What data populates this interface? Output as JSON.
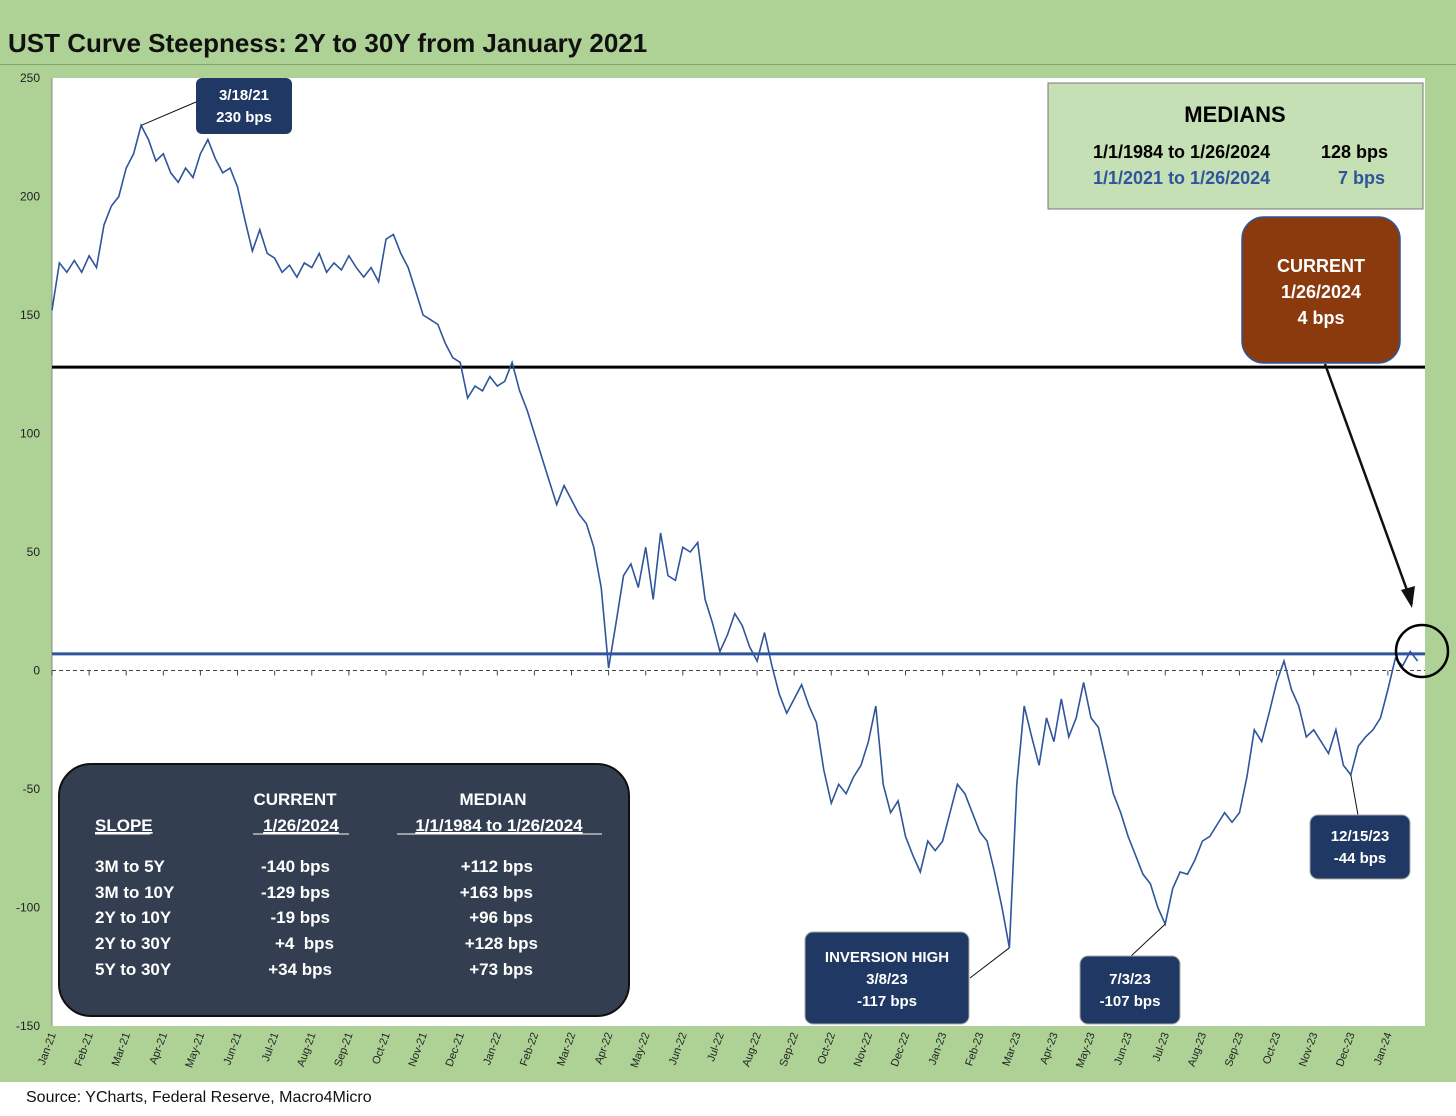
{
  "chart_data": {
    "type": "line",
    "title": "UST Curve Steepness: 2Y to 30Y from January 2021",
    "ylim": [
      -150,
      250
    ],
    "yticks": [
      250,
      200,
      150,
      100,
      50,
      0,
      -50,
      -100,
      -150
    ],
    "xlim": [
      0,
      37
    ],
    "xticks": [
      "Jan-21",
      "Feb-21",
      "Mar-21",
      "Apr-21",
      "May-21",
      "Jun-21",
      "Jul-21",
      "Aug-21",
      "Sep-21",
      "Oct-21",
      "Nov-21",
      "Dec-21",
      "Jan-22",
      "Feb-22",
      "Mar-22",
      "Apr-22",
      "May-22",
      "Jun-22",
      "Jul-22",
      "Aug-22",
      "Sep-22",
      "Oct-22",
      "Nov-22",
      "Dec-22",
      "Jan-23",
      "Feb-23",
      "Mar-23",
      "Apr-23",
      "May-23",
      "Jun-23",
      "Jul-23",
      "Aug-23",
      "Sep-23",
      "Oct-23",
      "Nov-23",
      "Dec-23",
      "Jan-24"
    ],
    "series": [
      {
        "name": "",
        "color": "#2f559c",
        "points": [
          [
            0,
            152
          ],
          [
            0.2,
            172
          ],
          [
            0.4,
            168
          ],
          [
            0.6,
            173
          ],
          [
            0.8,
            168
          ],
          [
            1.0,
            175
          ],
          [
            1.2,
            170
          ],
          [
            1.4,
            188
          ],
          [
            1.6,
            196
          ],
          [
            1.8,
            200
          ],
          [
            2.0,
            212
          ],
          [
            2.2,
            218
          ],
          [
            2.4,
            230
          ],
          [
            2.6,
            224
          ],
          [
            2.8,
            215
          ],
          [
            3.0,
            218
          ],
          [
            3.2,
            210
          ],
          [
            3.4,
            206
          ],
          [
            3.6,
            212
          ],
          [
            3.8,
            208
          ],
          [
            4.0,
            218
          ],
          [
            4.2,
            224
          ],
          [
            4.4,
            216
          ],
          [
            4.6,
            210
          ],
          [
            4.8,
            212
          ],
          [
            5.0,
            204
          ],
          [
            5.2,
            190
          ],
          [
            5.4,
            177
          ],
          [
            5.6,
            186
          ],
          [
            5.8,
            176
          ],
          [
            6.0,
            174
          ],
          [
            6.2,
            168
          ],
          [
            6.4,
            171
          ],
          [
            6.6,
            166
          ],
          [
            6.8,
            172
          ],
          [
            7.0,
            170
          ],
          [
            7.2,
            176
          ],
          [
            7.4,
            168
          ],
          [
            7.6,
            172
          ],
          [
            7.8,
            169
          ],
          [
            8.0,
            175
          ],
          [
            8.2,
            170
          ],
          [
            8.4,
            166
          ],
          [
            8.6,
            170
          ],
          [
            8.8,
            164
          ],
          [
            9.0,
            182
          ],
          [
            9.2,
            184
          ],
          [
            9.4,
            176
          ],
          [
            9.6,
            170
          ],
          [
            9.8,
            160
          ],
          [
            10.0,
            150
          ],
          [
            10.2,
            148
          ],
          [
            10.4,
            146
          ],
          [
            10.6,
            138
          ],
          [
            10.8,
            132
          ],
          [
            11.0,
            130
          ],
          [
            11.2,
            115
          ],
          [
            11.4,
            120
          ],
          [
            11.6,
            118
          ],
          [
            11.8,
            124
          ],
          [
            12.0,
            120
          ],
          [
            12.2,
            122
          ],
          [
            12.4,
            130
          ],
          [
            12.6,
            118
          ],
          [
            12.8,
            110
          ],
          [
            13.0,
            100
          ],
          [
            13.2,
            90
          ],
          [
            13.4,
            80
          ],
          [
            13.6,
            70
          ],
          [
            13.8,
            78
          ],
          [
            14.0,
            72
          ],
          [
            14.2,
            66
          ],
          [
            14.4,
            62
          ],
          [
            14.6,
            52
          ],
          [
            14.8,
            35
          ],
          [
            15.0,
            1
          ],
          [
            15.2,
            20
          ],
          [
            15.4,
            40
          ],
          [
            15.6,
            45
          ],
          [
            15.8,
            35
          ],
          [
            16.0,
            52
          ],
          [
            16.2,
            30
          ],
          [
            16.4,
            58
          ],
          [
            16.6,
            40
          ],
          [
            16.8,
            38
          ],
          [
            17.0,
            52
          ],
          [
            17.2,
            50
          ],
          [
            17.4,
            54
          ],
          [
            17.6,
            30
          ],
          [
            17.8,
            20
          ],
          [
            18.0,
            8
          ],
          [
            18.2,
            15
          ],
          [
            18.4,
            24
          ],
          [
            18.6,
            19
          ],
          [
            18.8,
            10
          ],
          [
            19.0,
            4
          ],
          [
            19.2,
            16
          ],
          [
            19.4,
            2
          ],
          [
            19.6,
            -10
          ],
          [
            19.8,
            -18
          ],
          [
            20.0,
            -12
          ],
          [
            20.2,
            -6
          ],
          [
            20.4,
            -15
          ],
          [
            20.6,
            -22
          ],
          [
            20.8,
            -42
          ],
          [
            21.0,
            -56
          ],
          [
            21.2,
            -48
          ],
          [
            21.4,
            -52
          ],
          [
            21.6,
            -45
          ],
          [
            21.8,
            -40
          ],
          [
            22.0,
            -30
          ],
          [
            22.2,
            -15
          ],
          [
            22.4,
            -48
          ],
          [
            22.6,
            -60
          ],
          [
            22.8,
            -55
          ],
          [
            23.0,
            -70
          ],
          [
            23.2,
            -78
          ],
          [
            23.4,
            -85
          ],
          [
            23.6,
            -72
          ],
          [
            23.8,
            -76
          ],
          [
            24.0,
            -72
          ],
          [
            24.2,
            -60
          ],
          [
            24.4,
            -48
          ],
          [
            24.6,
            -52
          ],
          [
            24.8,
            -60
          ],
          [
            25.0,
            -68
          ],
          [
            25.2,
            -72
          ],
          [
            25.4,
            -85
          ],
          [
            25.6,
            -100
          ],
          [
            25.8,
            -117
          ],
          [
            26.0,
            -48
          ],
          [
            26.2,
            -15
          ],
          [
            26.4,
            -28
          ],
          [
            26.6,
            -40
          ],
          [
            26.8,
            -20
          ],
          [
            27.0,
            -30
          ],
          [
            27.2,
            -12
          ],
          [
            27.4,
            -28
          ],
          [
            27.6,
            -20
          ],
          [
            27.8,
            -5
          ],
          [
            28.0,
            -20
          ],
          [
            28.2,
            -24
          ],
          [
            28.4,
            -38
          ],
          [
            28.6,
            -52
          ],
          [
            28.8,
            -60
          ],
          [
            29.0,
            -70
          ],
          [
            29.2,
            -78
          ],
          [
            29.4,
            -86
          ],
          [
            29.6,
            -90
          ],
          [
            29.8,
            -100
          ],
          [
            30.0,
            -107
          ],
          [
            30.2,
            -92
          ],
          [
            30.4,
            -85
          ],
          [
            30.6,
            -86
          ],
          [
            30.8,
            -80
          ],
          [
            31.0,
            -72
          ],
          [
            31.2,
            -70
          ],
          [
            31.4,
            -65
          ],
          [
            31.6,
            -60
          ],
          [
            31.8,
            -64
          ],
          [
            32.0,
            -60
          ],
          [
            32.2,
            -45
          ],
          [
            32.4,
            -25
          ],
          [
            32.6,
            -30
          ],
          [
            32.8,
            -18
          ],
          [
            33.0,
            -5
          ],
          [
            33.2,
            4
          ],
          [
            33.4,
            -8
          ],
          [
            33.6,
            -15
          ],
          [
            33.8,
            -28
          ],
          [
            34.0,
            -25
          ],
          [
            34.2,
            -30
          ],
          [
            34.4,
            -35
          ],
          [
            34.6,
            -25
          ],
          [
            34.8,
            -40
          ],
          [
            35.0,
            -44
          ],
          [
            35.2,
            -32
          ],
          [
            35.4,
            -28
          ],
          [
            35.6,
            -25
          ],
          [
            35.8,
            -20
          ],
          [
            36.0,
            -8
          ],
          [
            36.2,
            5
          ],
          [
            36.4,
            2
          ],
          [
            36.6,
            8
          ],
          [
            36.8,
            4
          ]
        ]
      }
    ],
    "reference_lines": [
      {
        "value": 128,
        "color": "#000000"
      },
      {
        "value": 7,
        "color": "#2f559c"
      },
      {
        "value": 0,
        "color": "#444444",
        "dashed": true
      }
    ],
    "grid": false,
    "legend": "none"
  },
  "medians_box": {
    "title": "MEDIANS",
    "rows": [
      {
        "period": "1/1/1984 to 1/26/2024",
        "value": "128 bps",
        "color": "#000000"
      },
      {
        "period": "1/1/2021 to 1/26/2024",
        "value": "7 bps",
        "color": "#2f559c"
      }
    ]
  },
  "callouts": {
    "peak": {
      "date": "3/18/21",
      "value": "230 bps",
      "x": 2.4,
      "y": 230
    },
    "current": {
      "title": "CURRENT",
      "date": "1/26/2024",
      "value": "4 bps",
      "x": 36.8,
      "y": 4
    },
    "inversion": {
      "title": "INVERSION HIGH",
      "date": "3/8/23",
      "value": "-117 bps",
      "x": 25.8,
      "y": -117
    },
    "jul": {
      "date": "7/3/23",
      "value": "-107 bps",
      "x": 30.0,
      "y": -107
    },
    "dec": {
      "date": "12/15/23",
      "value": "-44 bps",
      "x": 35.0,
      "y": -44
    }
  },
  "slope_table": {
    "headers": {
      "col1": "SLOPE",
      "col2_line1": "CURRENT",
      "col2_line2": "1/26/2024",
      "col3_line1": "MEDIAN",
      "col3_line2": "1/1/1984 to 1/26/2024"
    },
    "rows": [
      {
        "slope": "3M to 5Y",
        "current": "-140 bps",
        "median": "+112 bps"
      },
      {
        "slope": "3M to 10Y",
        "current": "-129 bps",
        "median": "+163 bps"
      },
      {
        "slope": "2Y to 10Y",
        "current": "-19 bps",
        "median": "+96 bps"
      },
      {
        "slope": "2Y to 30Y",
        "current": "+4  bps",
        "median": "+128 bps"
      },
      {
        "slope": "5Y to 30Y",
        "current": "+34 bps",
        "median": "+73 bps"
      }
    ]
  },
  "source": "Source: YCharts, Federal Reserve, Macro4Micro"
}
